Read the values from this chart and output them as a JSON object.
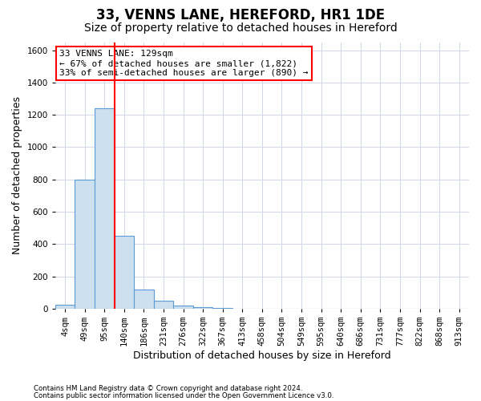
{
  "title": "33, VENNS LANE, HEREFORD, HR1 1DE",
  "subtitle": "Size of property relative to detached houses in Hereford",
  "xlabel": "Distribution of detached houses by size in Hereford",
  "ylabel": "Number of detached properties",
  "bar_labels": [
    "4sqm",
    "49sqm",
    "95sqm",
    "140sqm",
    "186sqm",
    "231sqm",
    "276sqm",
    "322sqm",
    "367sqm",
    "413sqm",
    "458sqm",
    "504sqm",
    "549sqm",
    "595sqm",
    "640sqm",
    "686sqm",
    "731sqm",
    "777sqm",
    "822sqm",
    "868sqm",
    "913sqm"
  ],
  "bar_values": [
    25,
    800,
    1240,
    450,
    120,
    50,
    20,
    10,
    5,
    0,
    0,
    0,
    0,
    0,
    0,
    0,
    0,
    0,
    0,
    0,
    0
  ],
  "bar_color": "#cce0f0",
  "bar_edgecolor": "#5b9bd5",
  "property_line_color": "red",
  "property_label": "33 VENNS LANE: 129sqm",
  "annotation_line1": "← 67% of detached houses are smaller (1,822)",
  "annotation_line2": "33% of semi-detached houses are larger (890) →",
  "annotation_box_color": "white",
  "annotation_box_edgecolor": "red",
  "grid_color": "#d0d8e8",
  "ylim": [
    0,
    1650
  ],
  "yticks": [
    0,
    200,
    400,
    600,
    800,
    1000,
    1200,
    1400,
    1600
  ],
  "footnote1": "Contains HM Land Registry data © Crown copyright and database right 2024.",
  "footnote2": "Contains public sector information licensed under the Open Government Licence v3.0.",
  "title_fontsize": 12,
  "subtitle_fontsize": 10,
  "label_fontsize": 9,
  "tick_fontsize": 7.5,
  "annot_fontsize": 8
}
